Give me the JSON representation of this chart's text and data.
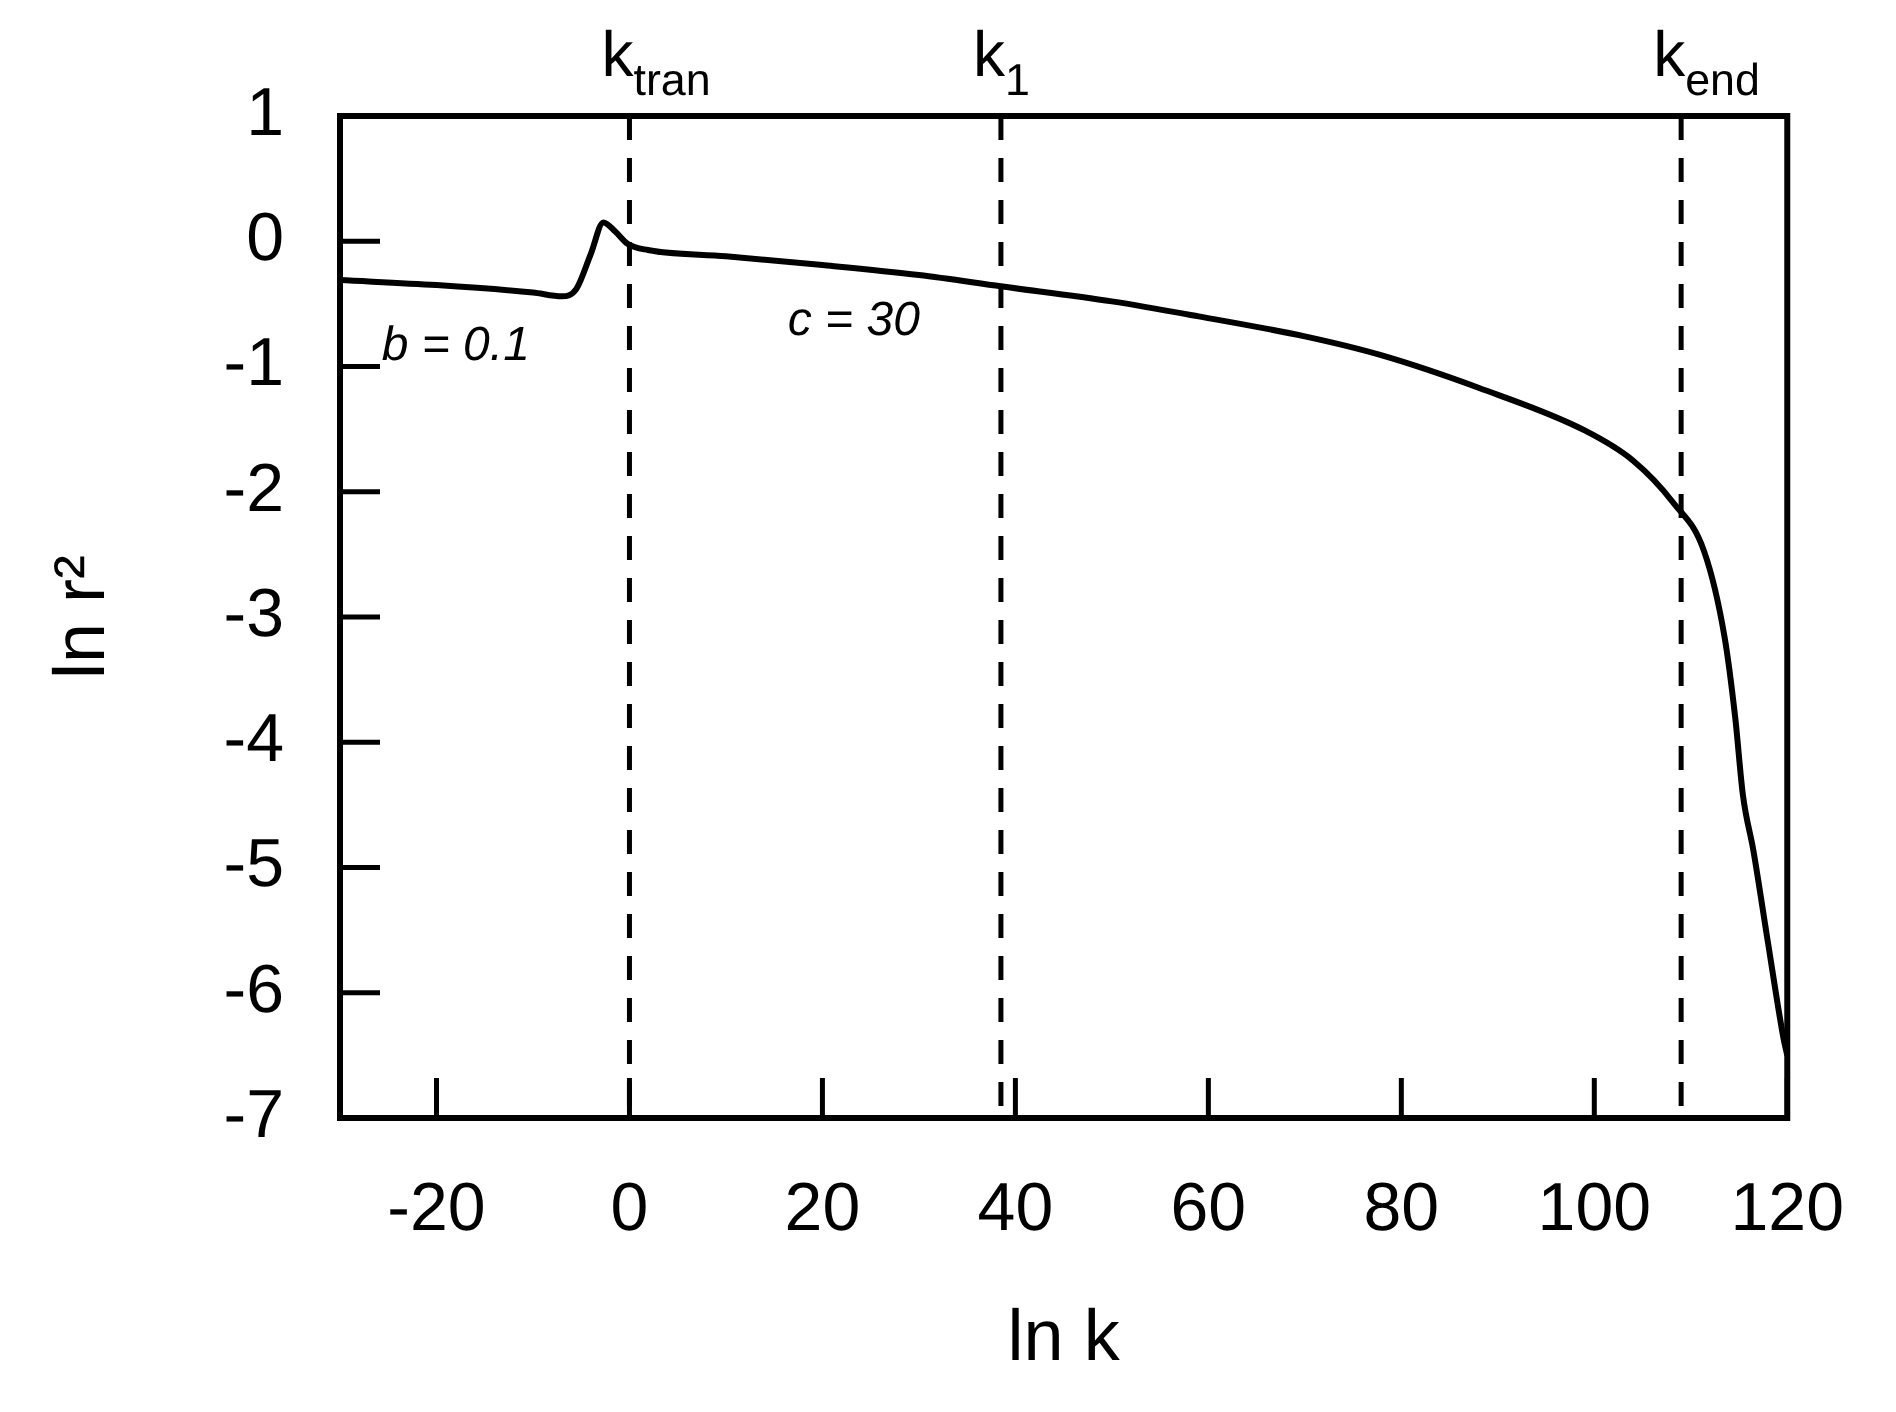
{
  "chart_data": {
    "type": "line",
    "xlabel": "ln k",
    "ylabel": "ln r²",
    "xlim": [
      -30,
      120
    ],
    "xticks": [
      -20,
      0,
      20,
      40,
      60,
      80,
      100,
      120
    ],
    "ylim": [
      -7,
      1
    ],
    "yticks": [
      -7,
      -6,
      -5,
      -4,
      -3,
      -2,
      -1,
      0,
      1
    ],
    "grid": false,
    "legend": false,
    "marker": "none",
    "line_style": "solid",
    "series": [
      {
        "color": "#000000",
        "x": [
          -30,
          -20,
          -10,
          -7,
          -5.5,
          -4,
          -2.7,
          -1.5,
          -0.2,
          1.9,
          10,
          20,
          30,
          38.5,
          50,
          59,
          70,
          77.9,
          88,
          99,
          104,
          108.1,
          111.4,
          113.5,
          114.6,
          115.4,
          116.5,
          118,
          119.6,
          120
        ],
        "values": [
          -0.31,
          -0.35,
          -0.41,
          -0.44,
          -0.38,
          -0.1,
          0.15,
          0.08,
          -0.02,
          -0.07,
          -0.12,
          -0.19,
          -0.27,
          -0.36,
          -0.48,
          -0.6,
          -0.76,
          -0.91,
          -1.17,
          -1.51,
          -1.75,
          -2.08,
          -2.48,
          -3.16,
          -3.8,
          -4.42,
          -4.87,
          -5.6,
          -6.36,
          -6.5
        ]
      }
    ],
    "ref_lines": [
      {
        "axis": "x",
        "value": 0,
        "label": "k$_{tran}$",
        "line_style": "dashed",
        "color": "#000000"
      },
      {
        "axis": "x",
        "value": 38.5,
        "label": "k$_{1}$",
        "line_style": "dashed",
        "color": "#000000"
      },
      {
        "axis": "x",
        "value": 109,
        "label": "k$_{end}$",
        "line_style": "dashed",
        "color": "#000000"
      }
    ],
    "annotations": [
      "b = 0.1",
      "c = 30"
    ]
  }
}
